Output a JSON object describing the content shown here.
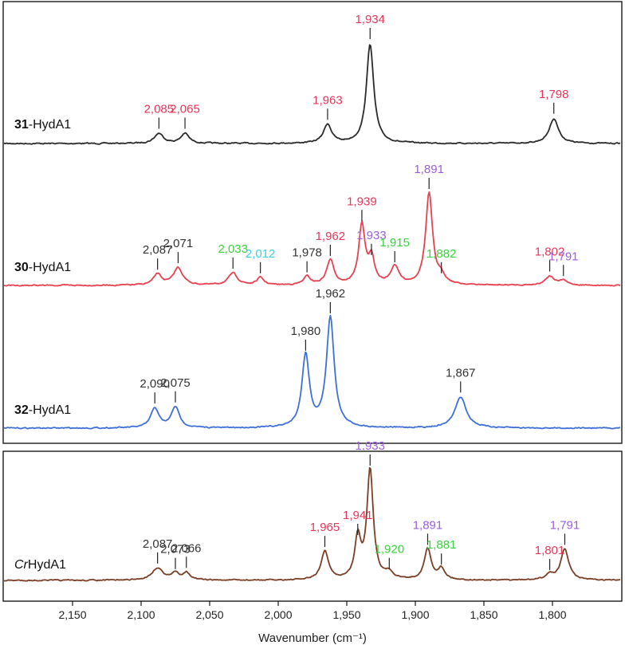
{
  "chart_data": {
    "type": "line",
    "xlabel": "Wavenumber (cm⁻¹)",
    "xlim": [
      2200,
      1750
    ],
    "x_reversed": true,
    "x_ticks": [
      "2,150",
      "2,100",
      "2,050",
      "2,000",
      "1,950",
      "1,900",
      "1,850",
      "1,800"
    ],
    "x_tick_values": [
      2150,
      2100,
      2050,
      2000,
      1950,
      1900,
      1850,
      1800
    ],
    "grid": false,
    "label_colors": {
      "red": "#e8365a",
      "purple": "#9a5fe0",
      "green": "#35d63a",
      "cyan": "#3ad0e8",
      "dark": "#333333"
    },
    "series": [
      {
        "name_bold": "31",
        "name_rest": "-HydA1",
        "name_italic": "",
        "color": "#2b2b2b",
        "peaks": [
          {
            "x": 2087,
            "h": 0.1,
            "w": 4,
            "label": "2,085",
            "c": "red"
          },
          {
            "x": 2068,
            "h": 0.1,
            "w": 3.5,
            "label": "2,065",
            "c": "red"
          },
          {
            "x": 1964,
            "h": 0.19,
            "w": 3.5,
            "label": "1,963",
            "c": "red"
          },
          {
            "x": 1933,
            "h": 1.0,
            "w": 3.2,
            "label": "1,934",
            "c": "red"
          },
          {
            "x": 1799,
            "h": 0.25,
            "w": 4,
            "label": "1,798",
            "c": "red"
          }
        ]
      },
      {
        "name_bold": "30",
        "name_rest": "-HydA1",
        "name_italic": "",
        "color": "#e8414f",
        "peaks": [
          {
            "x": 2088,
            "h": 0.12,
            "w": 3.5,
            "label": "2,087",
            "c": "dark"
          },
          {
            "x": 2073,
            "h": 0.19,
            "w": 4,
            "label": "2,071",
            "c": "dark"
          },
          {
            "x": 2033,
            "h": 0.13,
            "w": 4,
            "label": "2,033",
            "c": "green"
          },
          {
            "x": 2013,
            "h": 0.08,
            "w": 3,
            "label": "2,012",
            "c": "cyan"
          },
          {
            "x": 1979,
            "h": 0.09,
            "w": 3,
            "label": "1,978",
            "c": "dark"
          },
          {
            "x": 1962,
            "h": 0.27,
            "w": 3.2,
            "label": "1,962",
            "c": "red"
          },
          {
            "x": 1939,
            "h": 0.65,
            "w": 2.8,
            "label": "1,939",
            "c": "red"
          },
          {
            "x": 1932,
            "h": 0.28,
            "w": 2.6,
            "label": "1,933",
            "c": "purple"
          },
          {
            "x": 1915,
            "h": 0.2,
            "w": 3.5,
            "label": "1,915",
            "c": "green"
          },
          {
            "x": 1890,
            "h": 1.0,
            "w": 3.0,
            "label": "1,891",
            "c": "purple"
          },
          {
            "x": 1881,
            "h": 0.08,
            "w": 3.5,
            "label": "1,882",
            "c": "green"
          },
          {
            "x": 1802,
            "h": 0.1,
            "w": 4,
            "label": "1,802",
            "c": "red"
          },
          {
            "x": 1792,
            "h": 0.05,
            "w": 3,
            "label": "1,791",
            "c": "purple"
          }
        ]
      },
      {
        "name_bold": "32",
        "name_rest": "-HydA1",
        "name_italic": "",
        "color": "#3f6fd9",
        "peaks": [
          {
            "x": 2090,
            "h": 0.18,
            "w": 3.5,
            "label": "2,090",
            "c": "dark"
          },
          {
            "x": 2075,
            "h": 0.19,
            "w": 3.5,
            "label": "2,075",
            "c": "dark"
          },
          {
            "x": 1980,
            "h": 0.66,
            "w": 3.2,
            "label": "1,980",
            "c": "dark"
          },
          {
            "x": 1962,
            "h": 1.0,
            "w": 3.4,
            "label": "1,962",
            "c": "dark"
          },
          {
            "x": 1867,
            "h": 0.28,
            "w": 5,
            "label": "1,867",
            "c": "dark"
          }
        ]
      },
      {
        "name_bold": "",
        "name_rest": "HydA1",
        "name_italic": "Cr",
        "color": "#7b3f26",
        "peaks": [
          {
            "x": 2088,
            "h": 0.11,
            "w": 5,
            "label": "2,087",
            "c": "dark"
          },
          {
            "x": 2075,
            "h": 0.06,
            "w": 3,
            "label": "2,073",
            "c": "dark"
          },
          {
            "x": 2067,
            "h": 0.07,
            "w": 3,
            "label": "2,066",
            "c": "dark"
          },
          {
            "x": 1966,
            "h": 0.26,
            "w": 3.2,
            "label": "1,965",
            "c": "red"
          },
          {
            "x": 1942,
            "h": 0.37,
            "w": 2.6,
            "label": "1,941",
            "c": "red"
          },
          {
            "x": 1933,
            "h": 1.0,
            "w": 2.8,
            "label": "1,933",
            "c": "purple"
          },
          {
            "x": 1919,
            "h": 0.06,
            "w": 3.5,
            "label": "1,920",
            "c": "green"
          },
          {
            "x": 1891,
            "h": 0.28,
            "w": 3.0,
            "label": "1,891",
            "c": "purple"
          },
          {
            "x": 1881,
            "h": 0.1,
            "w": 3.2,
            "label": "1,881",
            "c": "green"
          },
          {
            "x": 1802,
            "h": 0.05,
            "w": 3.5,
            "label": "1,801",
            "c": "red"
          },
          {
            "x": 1791,
            "h": 0.28,
            "w": 3.5,
            "label": "1,791",
            "c": "purple"
          }
        ]
      }
    ]
  }
}
